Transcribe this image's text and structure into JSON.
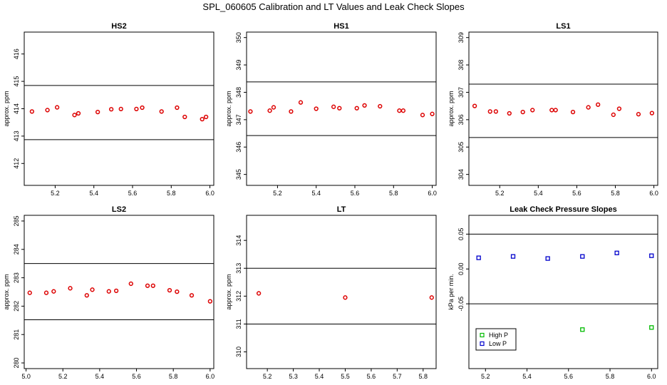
{
  "figure_title": "SPL_060605  Calibration and LT Values and Leak Check Slopes",
  "chart_data": [
    {
      "type": "scatter",
      "title": "HS2",
      "ylabel": "approx. ppm",
      "xlim": [
        5.04,
        6.02
      ],
      "ylim": [
        411.2,
        416.8
      ],
      "xticks": [
        5.2,
        5.4,
        5.6,
        5.8,
        6.0
      ],
      "xtick_labels": [
        "5.2",
        "5.4",
        "5.6",
        "5.8",
        "6.0"
      ],
      "yticks": [
        412,
        413,
        414,
        415,
        416
      ],
      "ytick_labels": [
        "412",
        "413",
        "414",
        "415",
        "416"
      ],
      "hlines": [
        414.85,
        412.87
      ],
      "series": [
        {
          "color": "#dd0000",
          "x": [
            5.08,
            5.16,
            5.21,
            5.3,
            5.32,
            5.42,
            5.49,
            5.54,
            5.62,
            5.65,
            5.75,
            5.83,
            5.87,
            5.96,
            5.98
          ],
          "y": [
            413.9,
            413.95,
            414.05,
            413.77,
            413.83,
            413.88,
            413.98,
            413.99,
            413.99,
            414.04,
            413.9,
            414.04,
            413.7,
            413.62,
            413.7
          ]
        }
      ]
    },
    {
      "type": "scatter",
      "title": "HS1",
      "ylabel": "approx. ppm",
      "xlim": [
        5.04,
        6.02
      ],
      "ylim": [
        344.6,
        350.2
      ],
      "xticks": [
        5.2,
        5.4,
        5.6,
        5.8,
        6.0
      ],
      "xtick_labels": [
        "5.2",
        "5.4",
        "5.6",
        "5.8",
        "6.0"
      ],
      "yticks": [
        345,
        346,
        347,
        348,
        349,
        350
      ],
      "ytick_labels": [
        "345",
        "346",
        "347",
        "348",
        "349",
        "350"
      ],
      "hlines": [
        348.38,
        346.42
      ],
      "series": [
        {
          "color": "#dd0000",
          "x": [
            5.06,
            5.16,
            5.18,
            5.27,
            5.32,
            5.4,
            5.49,
            5.52,
            5.61,
            5.65,
            5.73,
            5.83,
            5.85,
            5.95,
            6.0
          ],
          "y": [
            347.3,
            347.33,
            347.45,
            347.3,
            347.63,
            347.4,
            347.47,
            347.42,
            347.42,
            347.52,
            347.49,
            347.33,
            347.33,
            347.17,
            347.21
          ]
        }
      ]
    },
    {
      "type": "scatter",
      "title": "LS1",
      "ylabel": "approx. ppm",
      "xlim": [
        5.04,
        6.02
      ],
      "ylim": [
        303.6,
        309.2
      ],
      "xticks": [
        5.2,
        5.4,
        5.6,
        5.8,
        6.0
      ],
      "xtick_labels": [
        "5.2",
        "5.4",
        "5.6",
        "5.8",
        "6.0"
      ],
      "yticks": [
        304,
        305,
        306,
        307,
        308,
        309
      ],
      "ytick_labels": [
        "304",
        "305",
        "306",
        "307",
        "308",
        "309"
      ],
      "hlines": [
        307.3,
        305.35
      ],
      "series": [
        {
          "color": "#dd0000",
          "x": [
            5.07,
            5.15,
            5.18,
            5.25,
            5.32,
            5.37,
            5.47,
            5.49,
            5.58,
            5.66,
            5.71,
            5.79,
            5.82,
            5.92,
            5.99
          ],
          "y": [
            306.5,
            306.3,
            306.3,
            306.23,
            306.28,
            306.35,
            306.35,
            306.35,
            306.28,
            306.45,
            306.55,
            306.18,
            306.4,
            306.2,
            306.24
          ]
        }
      ]
    },
    {
      "type": "scatter",
      "title": "LS2",
      "ylabel": "approx. ppm",
      "xlim": [
        4.99,
        6.02
      ],
      "ylim": [
        279.8,
        285.2
      ],
      "xticks": [
        5.0,
        5.2,
        5.4,
        5.6,
        5.8,
        6.0
      ],
      "xtick_labels": [
        "5.0",
        "5.2",
        "5.4",
        "5.6",
        "5.8",
        "6.0"
      ],
      "yticks": [
        280,
        281,
        282,
        283,
        284,
        285
      ],
      "ytick_labels": [
        "280",
        "281",
        "282",
        "283",
        "284",
        "285"
      ],
      "hlines": [
        283.5,
        281.52
      ],
      "series": [
        {
          "color": "#dd0000",
          "x": [
            5.02,
            5.11,
            5.15,
            5.24,
            5.33,
            5.36,
            5.45,
            5.49,
            5.57,
            5.66,
            5.69,
            5.78,
            5.82,
            5.9,
            6.0
          ],
          "y": [
            282.47,
            282.47,
            282.52,
            282.63,
            282.38,
            282.58,
            282.52,
            282.54,
            282.79,
            282.72,
            282.72,
            282.56,
            282.51,
            282.38,
            282.17
          ]
        }
      ]
    },
    {
      "type": "scatter",
      "title": "LT",
      "ylabel": "approx. ppm",
      "xlim": [
        5.12,
        5.85
      ],
      "ylim": [
        309.4,
        314.9
      ],
      "xticks": [
        5.2,
        5.3,
        5.4,
        5.5,
        5.6,
        5.7,
        5.8
      ],
      "xtick_labels": [
        "5.2",
        "5.3",
        "5.4",
        "5.5",
        "5.6",
        "5.7",
        "5.8"
      ],
      "yticks": [
        310,
        311,
        312,
        313,
        314
      ],
      "ytick_labels": [
        "310",
        "311",
        "312",
        "313",
        "314"
      ],
      "hlines": [
        313.0,
        311.0
      ],
      "series": [
        {
          "color": "#dd0000",
          "x": [
            5.167,
            5.5,
            5.833
          ],
          "y": [
            312.1,
            311.95,
            311.95
          ]
        }
      ]
    },
    {
      "type": "scatter",
      "title": "Leak Check Pressure Slopes",
      "ylabel": "kPa per min.",
      "xlim": [
        5.12,
        6.03
      ],
      "ylim": [
        -0.143,
        0.077
      ],
      "xticks": [
        5.2,
        5.4,
        5.6,
        5.8,
        6.0
      ],
      "xtick_labels": [
        "5.2",
        "5.4",
        "5.6",
        "5.8",
        "6.0"
      ],
      "yticks": [
        -0.05,
        0.0,
        0.05
      ],
      "ytick_labels": [
        "-0.05",
        "0.00",
        "0.05"
      ],
      "hlines": [
        0.05,
        -0.05
      ],
      "legend": {
        "position": "bottom-left",
        "entries": [
          "High P",
          "Low P"
        ]
      },
      "series": [
        {
          "name": "High P",
          "color": "#00bb00",
          "x": [
            5.333,
            5.667,
            6.0
          ],
          "y": [
            -0.093,
            -0.087,
            -0.084
          ]
        },
        {
          "name": "Low P",
          "color": "#0000cc",
          "x": [
            5.167,
            5.333,
            5.5,
            5.667,
            5.833,
            6.0
          ],
          "y": [
            0.016,
            0.018,
            0.015,
            0.018,
            0.023,
            0.019
          ]
        }
      ]
    }
  ]
}
